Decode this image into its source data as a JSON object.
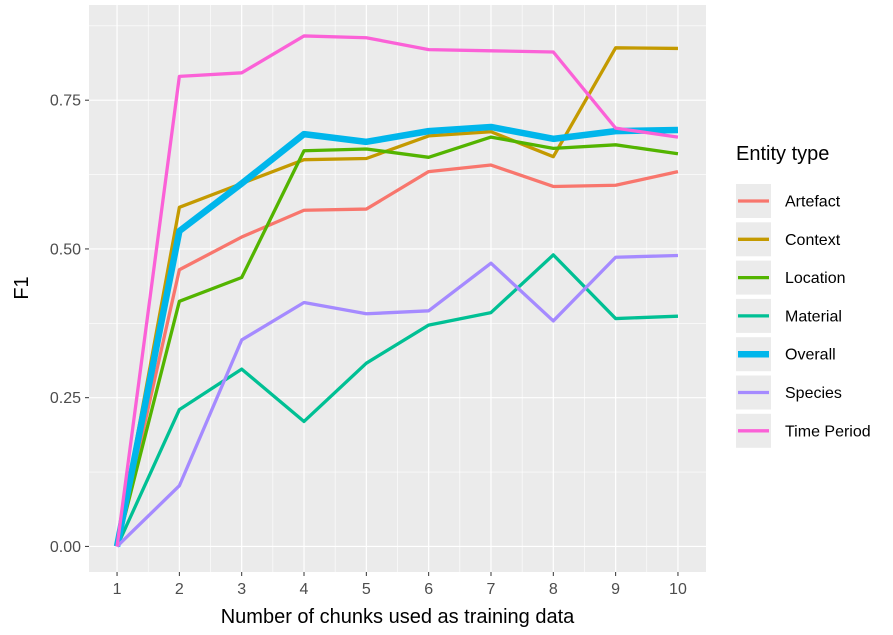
{
  "chart_data": {
    "type": "line",
    "xlabel": "Number of chunks used as training data",
    "ylabel": "F1",
    "x": [
      1,
      2,
      3,
      4,
      5,
      6,
      7,
      8,
      9,
      10
    ],
    "x_tick_labels": [
      "1",
      "2",
      "3",
      "4",
      "5",
      "6",
      "7",
      "8",
      "9",
      "10"
    ],
    "xlim": [
      0.55,
      10.45
    ],
    "ylim": [
      -0.043,
      0.91
    ],
    "y_ticks": [
      0,
      0.25,
      0.5,
      0.75
    ],
    "y_tick_labels": [
      "0.00",
      "0.25",
      "0.50",
      "0.75"
    ],
    "grid": true,
    "panel_background": "#ebebeb",
    "grid_color": "#ffffff",
    "legend": {
      "title": "Entity type",
      "position": "right"
    },
    "series": [
      {
        "name": "Artefact",
        "color": "#f8766d",
        "values": [
          0.0,
          0.465,
          0.52,
          0.565,
          0.567,
          0.63,
          0.641,
          0.605,
          0.607,
          0.63
        ]
      },
      {
        "name": "Context",
        "color": "#c49a00",
        "values": [
          0.0,
          0.57,
          0.61,
          0.65,
          0.652,
          0.69,
          0.697,
          0.655,
          0.838,
          0.837
        ]
      },
      {
        "name": "Location",
        "color": "#53b400",
        "values": [
          0.0,
          0.412,
          0.452,
          0.665,
          0.668,
          0.654,
          0.688,
          0.669,
          0.675,
          0.66
        ]
      },
      {
        "name": "Material",
        "color": "#00c094",
        "values": [
          0.0,
          0.23,
          0.298,
          0.21,
          0.308,
          0.372,
          0.393,
          0.49,
          0.383,
          0.387
        ]
      },
      {
        "name": "Overall",
        "color": "#00b6eb",
        "values": [
          0.0,
          0.53,
          0.61,
          0.693,
          0.68,
          0.698,
          0.705,
          0.685,
          0.698,
          0.7
        ]
      },
      {
        "name": "Species",
        "color": "#a58aff",
        "values": [
          0.0,
          0.102,
          0.347,
          0.41,
          0.391,
          0.396,
          0.476,
          0.379,
          0.486,
          0.489
        ]
      },
      {
        "name": "Time Period",
        "color": "#fb61d7",
        "values": [
          0.0,
          0.79,
          0.796,
          0.858,
          0.855,
          0.835,
          0.833,
          0.831,
          0.703,
          0.688
        ]
      }
    ]
  }
}
